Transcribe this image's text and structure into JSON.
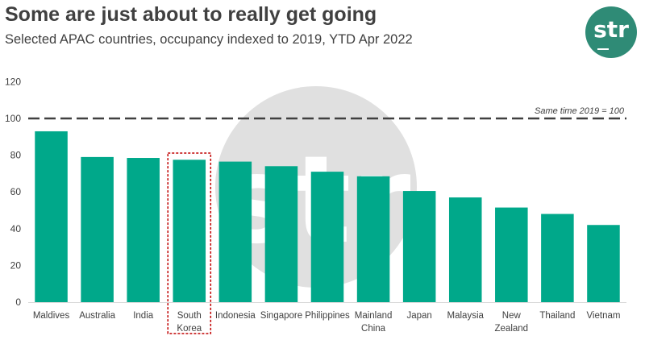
{
  "header": {
    "title": "Some are just about to really get going",
    "subtitle": "Selected APAC countries, occupancy indexed to 2019, YTD Apr 2022"
  },
  "logo": {
    "text": "str",
    "color": "#2f8b76"
  },
  "chart_data": {
    "type": "bar",
    "title": "Some are just about to really get going",
    "subtitle": "Selected APAC countries, occupancy indexed to 2019, YTD Apr 2022",
    "xlabel": "",
    "ylabel": "",
    "categories": [
      [
        "Maldives"
      ],
      [
        "Australia"
      ],
      [
        "India"
      ],
      [
        "South",
        "Korea"
      ],
      [
        "Indonesia"
      ],
      [
        "Singapore"
      ],
      [
        "Philippines"
      ],
      [
        "Mainland",
        "China"
      ],
      [
        "Japan"
      ],
      [
        "Malaysia"
      ],
      [
        "New",
        "Zealand"
      ],
      [
        "Thailand"
      ],
      [
        "Vietnam"
      ]
    ],
    "values": [
      93,
      79,
      78.5,
      77.5,
      76.5,
      74,
      71,
      68.5,
      60.5,
      57,
      51.5,
      48,
      42
    ],
    "ylim": [
      0,
      120
    ],
    "yticks": [
      0,
      20,
      40,
      60,
      80,
      100,
      120
    ],
    "grid": false,
    "bar_color": "#00a88a",
    "reference_line": {
      "value": 100,
      "label": "Same time 2019 = 100",
      "style": "dashed",
      "color": "#404040"
    },
    "highlight": {
      "category": "South Korea",
      "style": "dashed-box",
      "color": "#c00000"
    },
    "watermark": "str"
  }
}
